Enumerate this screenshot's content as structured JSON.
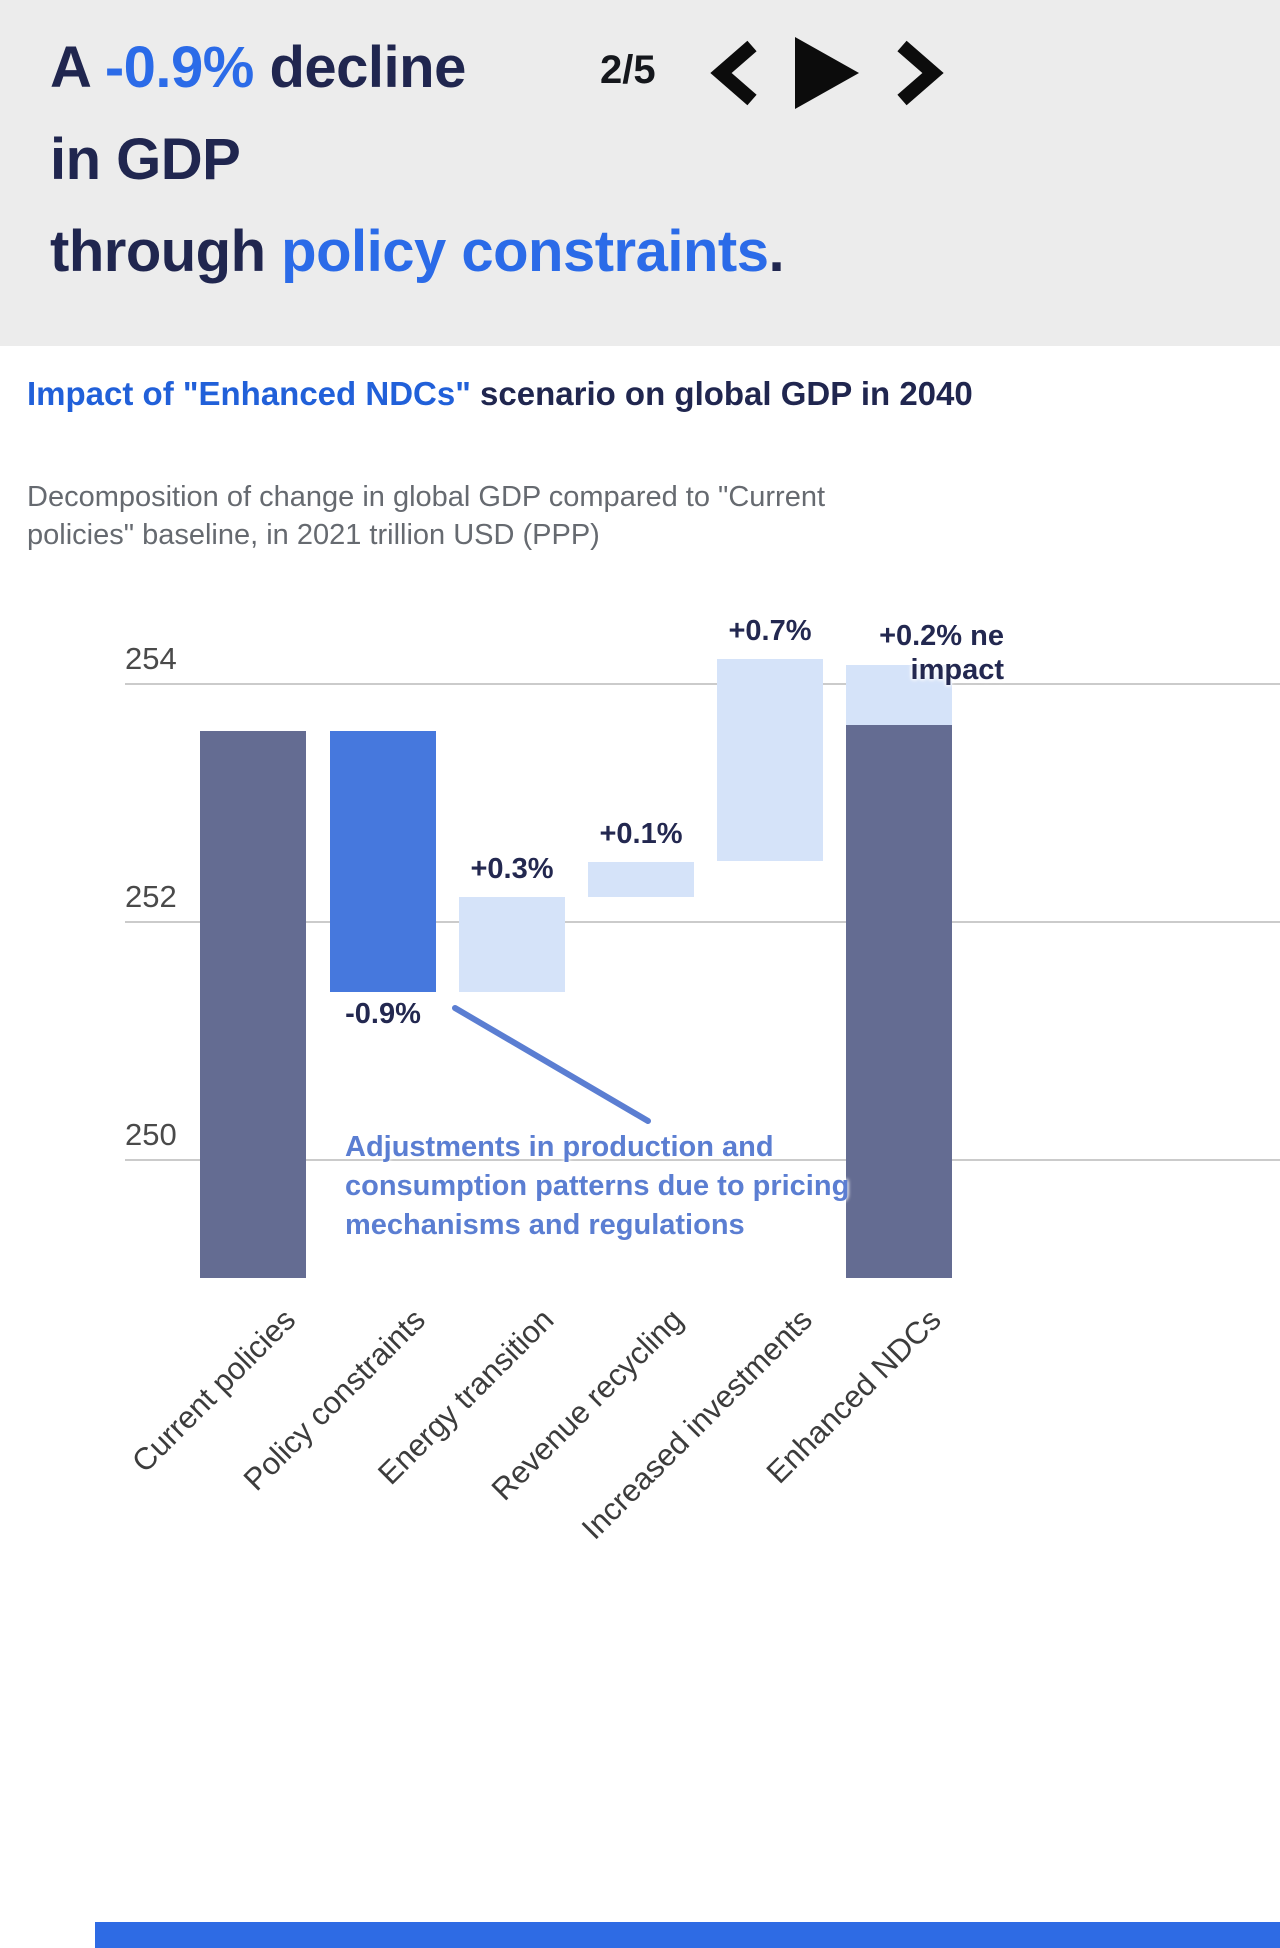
{
  "colors": {
    "accent_blue": "#2b6be8",
    "heading_dark": "#20264f",
    "header_bg": "#ececec",
    "annotation_blue": "#5b7ed2"
  },
  "header": {
    "pagination": "2/5",
    "heading": {
      "seg_a": "A ",
      "seg_accent1": "-0.9%",
      "seg_b": " decline",
      "line2": "in GDP",
      "seg_c": "through ",
      "seg_accent2": "policy constraints",
      "seg_d": "."
    },
    "icons": [
      "chevron-left-icon",
      "play-icon",
      "chevron-right-icon"
    ]
  },
  "chart_header": {
    "title_blue": "Impact of \"Enhanced NDCs\"",
    "title_dark": " scenario on global GDP in 2040",
    "subtitle": "Decomposition of change in global GDP compared to \"Current policies\" baseline, in 2021 trillion USD (PPP)"
  },
  "chart_data": {
    "type": "bar",
    "subtype": "waterfall",
    "title": "Impact of \"Enhanced NDCs\" scenario on global GDP in 2040",
    "subtitle": "Decomposition of change in global GDP compared to \"Current policies\" baseline, in 2021 trillion USD (PPP)",
    "ylabel": "2021 trillion USD (PPP)",
    "ylim": [
      249.0,
      254.5
    ],
    "yticks": [
      254,
      252,
      250
    ],
    "grid": true,
    "legend": false,
    "categories": [
      "Current policies",
      "Policy constraints",
      "Energy transition",
      "Revenue recycling",
      "Increased investments",
      "Enhanced NDCs"
    ],
    "segments": [
      {
        "category_index": 0,
        "from": 249.0,
        "to": 253.6,
        "color_key": "dark",
        "label": "",
        "label_side": ""
      },
      {
        "category_index": 1,
        "from": 251.4,
        "to": 253.6,
        "color_key": "blue",
        "label": "-0.9%",
        "label_side": "below"
      },
      {
        "category_index": 2,
        "from": 251.4,
        "to": 252.2,
        "color_key": "light",
        "label": "+0.3%",
        "label_side": "above"
      },
      {
        "category_index": 3,
        "from": 252.2,
        "to": 252.5,
        "color_key": "light",
        "label": "+0.1%",
        "label_side": "above"
      },
      {
        "category_index": 4,
        "from": 252.5,
        "to": 254.2,
        "color_key": "light",
        "label": "+0.7%",
        "label_side": "above"
      },
      {
        "category_index": 5,
        "from": 249.0,
        "to": 253.65,
        "color_key": "dark",
        "label": "",
        "label_side": ""
      },
      {
        "category_index": 5,
        "from": 253.65,
        "to": 254.15,
        "color_key": "light",
        "label": "+0.2% ne impact",
        "label_side": "above-wrap"
      }
    ],
    "colors": {
      "dark": "#646c92",
      "blue": "#4678dd",
      "light": "#d5e3f9"
    },
    "values_pct": {
      "policy_constraints": "-0.9%",
      "energy_transition": "+0.3%",
      "revenue_recycling": "+0.1%",
      "increased_investments": "+0.7%",
      "net_impact": "+0.2%"
    },
    "annotation": "Adjustments in production and consumption patterns due to pricing mechanisms and regulations"
  }
}
